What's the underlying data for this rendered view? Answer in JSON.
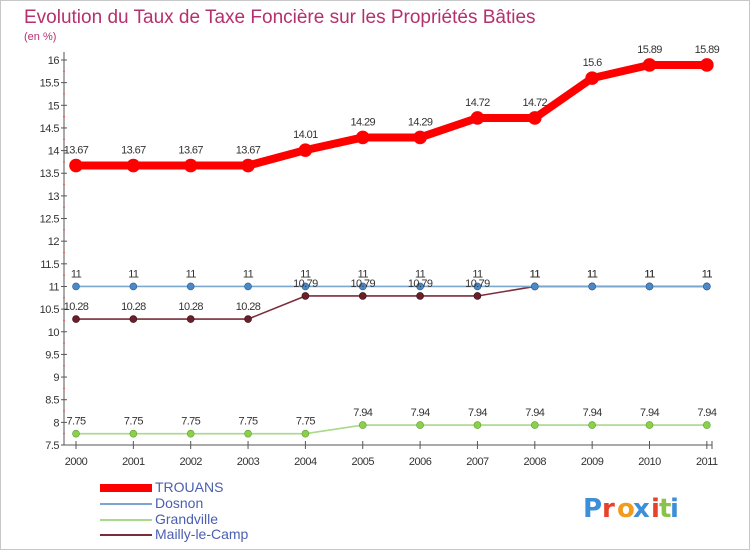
{
  "chart_data": {
    "type": "line",
    "title": "Evolution du Taux de Taxe Foncière sur les Propriétés Bâties",
    "unit_label": "(en %)",
    "xlabel": "",
    "ylabel": "",
    "x": [
      "2000",
      "2001",
      "2002",
      "2003",
      "2004",
      "2005",
      "2006",
      "2007",
      "2008",
      "2009",
      "2010",
      "2011"
    ],
    "ylim": [
      7.5,
      16
    ],
    "yticks": [
      7.5,
      8,
      8.5,
      9,
      9.5,
      10,
      10.5,
      11,
      11.5,
      12,
      12.5,
      13,
      13.5,
      14,
      14.5,
      15,
      15.5,
      16
    ],
    "grid": false,
    "legend_position": "bottom-left",
    "series": [
      {
        "name": "TROUANS",
        "color": "#ff0000",
        "values": [
          13.67,
          13.67,
          13.67,
          13.67,
          14.01,
          14.29,
          14.29,
          14.72,
          14.72,
          15.6,
          15.89,
          15.89
        ],
        "labels": [
          "13.67",
          "13.67",
          "13.67",
          "13.67",
          "14.01",
          "14.29",
          "14.29",
          "14.72",
          "14.72",
          "15.6",
          "15.89",
          "15.89"
        ]
      },
      {
        "name": "Dosnon",
        "color": "#7aa7cf",
        "values": [
          11,
          11,
          11,
          11,
          11,
          11,
          11,
          11,
          11,
          11,
          11,
          11
        ],
        "labels": [
          "11",
          "11",
          "11",
          "11",
          "11",
          "11",
          "11",
          "11",
          "11",
          "11",
          "11",
          "11"
        ]
      },
      {
        "name": "Grandville",
        "color": "#a9d98a",
        "values": [
          7.75,
          7.75,
          7.75,
          7.75,
          7.75,
          7.94,
          7.94,
          7.94,
          7.94,
          7.94,
          7.94,
          7.94
        ],
        "labels": [
          "7.75",
          "7.75",
          "7.75",
          "7.75",
          "7.75",
          "7.94",
          "7.94",
          "7.94",
          "7.94",
          "7.94",
          "7.94",
          "7.94"
        ]
      },
      {
        "name": "Mailly-le-Camp",
        "color": "#7a2e3a",
        "values": [
          10.28,
          10.28,
          10.28,
          10.28,
          10.79,
          10.79,
          10.79,
          10.79,
          11,
          11,
          11,
          11
        ],
        "labels": [
          "10.28",
          "10.28",
          "10.28",
          "10.28",
          "10.79",
          "10.79",
          "10.79",
          "10.79",
          "11",
          "11",
          "11",
          "11"
        ]
      }
    ]
  },
  "logo": {
    "text": "Proxiti",
    "letter_colors": [
      "#3c8fd8",
      "#e8412b",
      "#f29b1c",
      "#3c8fd8",
      "#e8412b",
      "#8bc34a",
      "#3c8fd8"
    ]
  }
}
